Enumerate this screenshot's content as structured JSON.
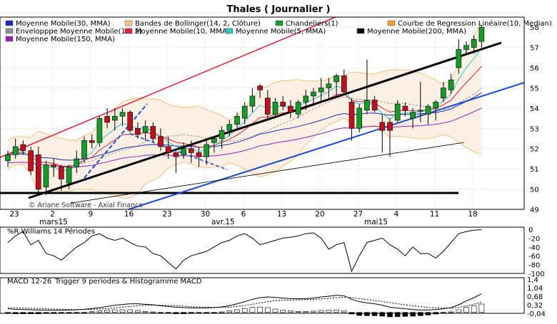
{
  "window": {
    "title": "Thales  ( Journalier )"
  },
  "legend": [
    {
      "label": "Moyenne Mobile(30, MMA)",
      "color": "#1a2bb8"
    },
    {
      "label": "Bandes de Bollinger(14, 2, Clôture)",
      "color": "#f3c98a"
    },
    {
      "label": "Chandeliers(1)",
      "color": "#169b2a"
    },
    {
      "label": "Courbe de Regression Linéaire(10, Median)",
      "color": "#f0a030"
    },
    {
      "label": "Envelopppe Moyenne Mobile(14, 2)",
      "color": "#909090"
    },
    {
      "label": "Moyenne Mobile(10, MMA)",
      "color": "#e0203c"
    },
    {
      "label": "Moyenne Mobile(5, MMA)",
      "color": "#30c8c8"
    },
    {
      "label": "Moyenne Mobile(200, MMA)",
      "color": "#000000"
    },
    {
      "label": "Moyenne Mobile(150, MMA)",
      "color": "#9a20b8"
    }
  ],
  "watermark": "© Ariane Software - Axial Finance",
  "chart_data": [
    {
      "type": "candlestick",
      "title": "Thales  ( Journalier )",
      "ylim": [
        49,
        58.5
      ],
      "yticks": [
        49,
        50,
        51,
        52,
        53,
        54,
        55,
        56,
        57,
        58
      ],
      "xticks": [
        "23",
        "2",
        "9",
        "16",
        "23",
        "30",
        "6",
        "13",
        "20",
        "27",
        "4",
        "11",
        "18"
      ],
      "month_labels": [
        "mars15",
        "avr.15",
        "mai15"
      ],
      "grid": true,
      "colors": {
        "up": "#169b2a",
        "down": "#c0101e"
      },
      "ohlc": [
        [
          51.4,
          51.9,
          51.1,
          51.7
        ],
        [
          51.7,
          52.5,
          51.5,
          52.1
        ],
        [
          52.2,
          52.4,
          51.7,
          51.9
        ],
        [
          51.9,
          52.1,
          50.7,
          50.9
        ],
        [
          51.7,
          52.1,
          49.8,
          50.0
        ],
        [
          50.1,
          51.4,
          49.7,
          51.2
        ],
        [
          51.2,
          51.5,
          50.6,
          51.1
        ],
        [
          51.1,
          51.2,
          49.9,
          50.5
        ],
        [
          50.3,
          51.2,
          50.0,
          51.1
        ],
        [
          51.1,
          51.9,
          50.8,
          51.5
        ],
        [
          51.5,
          52.6,
          51.3,
          52.4
        ],
        [
          52.4,
          52.7,
          52.0,
          52.3
        ],
        [
          52.3,
          53.6,
          52.1,
          53.5
        ],
        [
          53.6,
          54.0,
          53.0,
          53.3
        ],
        [
          53.4,
          54.0,
          52.9,
          53.6
        ],
        [
          53.6,
          54.0,
          53.1,
          53.8
        ],
        [
          53.8,
          53.9,
          52.8,
          52.9
        ],
        [
          53.0,
          53.3,
          52.5,
          52.7
        ],
        [
          52.8,
          53.4,
          52.4,
          53.1
        ],
        [
          53.1,
          53.3,
          52.3,
          52.5
        ],
        [
          52.6,
          53.0,
          51.9,
          52.1
        ],
        [
          52.1,
          52.6,
          51.5,
          51.8
        ],
        [
          51.8,
          51.9,
          50.8,
          51.6
        ],
        [
          51.7,
          52.3,
          51.5,
          52.0
        ],
        [
          52.0,
          52.4,
          51.3,
          51.8
        ],
        [
          51.8,
          52.1,
          51.1,
          51.6
        ],
        [
          51.6,
          52.4,
          51.2,
          52.2
        ],
        [
          52.3,
          52.6,
          51.8,
          52.5
        ],
        [
          52.5,
          53.1,
          52.0,
          52.9
        ],
        [
          52.9,
          53.4,
          52.6,
          53.2
        ],
        [
          53.2,
          53.8,
          52.9,
          53.6
        ],
        [
          53.5,
          54.3,
          53.2,
          54.1
        ],
        [
          54.1,
          55.0,
          53.8,
          54.6
        ],
        [
          55.1,
          55.2,
          54.5,
          54.9
        ],
        [
          54.5,
          54.9,
          53.5,
          53.7
        ],
        [
          53.7,
          54.5,
          53.5,
          54.3
        ],
        [
          54.3,
          54.6,
          53.9,
          54.1
        ],
        [
          54.1,
          54.4,
          53.5,
          53.8
        ],
        [
          53.7,
          54.4,
          53.5,
          54.3
        ],
        [
          54.3,
          54.9,
          53.9,
          54.6
        ],
        [
          54.6,
          55.0,
          54.1,
          54.8
        ],
        [
          54.8,
          55.5,
          54.3,
          55.0
        ],
        [
          55.0,
          55.5,
          54.5,
          55.2
        ],
        [
          55.3,
          55.7,
          54.6,
          55.6
        ],
        [
          55.6,
          55.9,
          54.7,
          54.8
        ],
        [
          54.3,
          54.5,
          52.4,
          53.0
        ],
        [
          53.0,
          54.2,
          52.8,
          54.0
        ],
        [
          53.9,
          56.4,
          53.7,
          54.4
        ],
        [
          54.4,
          54.6,
          53.8,
          53.9
        ],
        [
          53.3,
          53.7,
          51.8,
          52.9
        ],
        [
          53.3,
          53.5,
          51.6,
          52.9
        ],
        [
          53.4,
          54.4,
          53.3,
          54.2
        ],
        [
          54.1,
          54.3,
          53.6,
          53.9
        ],
        [
          53.5,
          54.0,
          53.0,
          53.8
        ],
        [
          53.9,
          55.3,
          53.3,
          53.9
        ],
        [
          53.7,
          54.2,
          53.2,
          54.1
        ],
        [
          54.0,
          54.4,
          53.4,
          54.3
        ],
        [
          54.5,
          55.3,
          54.3,
          55.0
        ],
        [
          54.9,
          55.7,
          54.7,
          55.4
        ],
        [
          56.0,
          57.4,
          55.7,
          56.9
        ],
        [
          56.9,
          57.3,
          56.6,
          57.1
        ],
        [
          57.0,
          57.6,
          56.7,
          57.4
        ],
        [
          57.3,
          58.1,
          57.0,
          58.0
        ]
      ],
      "price_axis_labels": [
        "49",
        "50",
        "51",
        "52",
        "53",
        "54",
        "55",
        "56",
        "57",
        "58"
      ]
    },
    {
      "type": "line",
      "title": "%R Williams 14 Périodes",
      "ylim": [
        -100,
        0
      ],
      "yticks": [
        0,
        -20,
        -40,
        -60,
        -80,
        -100
      ],
      "y_labels": [
        "0",
        "-20",
        "-40",
        "-60",
        "-80",
        "-100"
      ],
      "values": [
        -30,
        -15,
        -5,
        -35,
        -25,
        -55,
        -60,
        -70,
        -55,
        -40,
        -30,
        -15,
        -10,
        -20,
        -25,
        -20,
        -30,
        -38,
        -40,
        -55,
        -60,
        -75,
        -90,
        -70,
        -60,
        -55,
        -50,
        -40,
        -30,
        -25,
        -15,
        -10,
        -20,
        -35,
        -30,
        -25,
        -20,
        -18,
        -15,
        -10,
        -8,
        -20,
        -45,
        -35,
        -30,
        -95,
        -60,
        -30,
        -25,
        -20,
        -35,
        -45,
        -60,
        -40,
        -55,
        -55,
        -65,
        -50,
        -30,
        -10,
        -5,
        -2,
        -1
      ]
    },
    {
      "type": "line",
      "title": "MACD 12-26",
      "ylim": [
        -0.04,
        1.4
      ],
      "yticks": [
        -0.04,
        0.32,
        0.68,
        1.04,
        1.4
      ],
      "y_labels": [
        "-0,04",
        "0,32",
        "0,68",
        "1,04",
        "1,4"
      ],
      "legend_label": "Trigger 9 periodes & Histogramme MACD",
      "macd": [
        0.15,
        0.13,
        0.12,
        0.11,
        0.1,
        0.1,
        0.09,
        0.09,
        0.1,
        0.11,
        0.13,
        0.16,
        0.2,
        0.25,
        0.3,
        0.33,
        0.36,
        0.36,
        0.34,
        0.32,
        0.28,
        0.25,
        0.22,
        0.2,
        0.19,
        0.19,
        0.19,
        0.2,
        0.23,
        0.28,
        0.36,
        0.45,
        0.55,
        0.62,
        0.65,
        0.63,
        0.6,
        0.58,
        0.57,
        0.58,
        0.6,
        0.65,
        0.68,
        0.72,
        0.7,
        0.55,
        0.45,
        0.4,
        0.36,
        0.3,
        0.22,
        0.18,
        0.15,
        0.12,
        0.1,
        0.1,
        0.12,
        0.15,
        0.2,
        0.32,
        0.48,
        0.62,
        0.78
      ],
      "signal": [
        0.2,
        0.19,
        0.18,
        0.17,
        0.16,
        0.15,
        0.14,
        0.13,
        0.12,
        0.12,
        0.12,
        0.13,
        0.14,
        0.16,
        0.19,
        0.22,
        0.25,
        0.28,
        0.3,
        0.3,
        0.3,
        0.29,
        0.28,
        0.26,
        0.24,
        0.23,
        0.22,
        0.21,
        0.21,
        0.22,
        0.25,
        0.29,
        0.34,
        0.4,
        0.45,
        0.49,
        0.51,
        0.52,
        0.53,
        0.54,
        0.55,
        0.57,
        0.59,
        0.62,
        0.64,
        0.62,
        0.58,
        0.54,
        0.5,
        0.46,
        0.41,
        0.36,
        0.32,
        0.28,
        0.24,
        0.21,
        0.19,
        0.18,
        0.18,
        0.21,
        0.27,
        0.34,
        0.43
      ],
      "histogram": [
        -0.05,
        -0.06,
        -0.06,
        -0.06,
        -0.06,
        -0.05,
        -0.05,
        -0.04,
        -0.02,
        -0.01,
        0.01,
        0.03,
        0.06,
        0.09,
        0.11,
        0.11,
        0.11,
        0.08,
        0.04,
        0.02,
        -0.02,
        -0.04,
        -0.06,
        -0.06,
        -0.05,
        -0.04,
        -0.03,
        -0.01,
        0.02,
        0.06,
        0.11,
        0.16,
        0.21,
        0.22,
        0.2,
        0.14,
        0.09,
        0.06,
        0.04,
        0.04,
        0.05,
        0.08,
        0.09,
        0.1,
        0.06,
        -0.07,
        -0.13,
        -0.14,
        -0.14,
        -0.16,
        -0.19,
        -0.18,
        -0.17,
        -0.16,
        -0.14,
        -0.11,
        -0.07,
        -0.03,
        0.02,
        0.11,
        0.21,
        0.28,
        0.35
      ]
    }
  ]
}
